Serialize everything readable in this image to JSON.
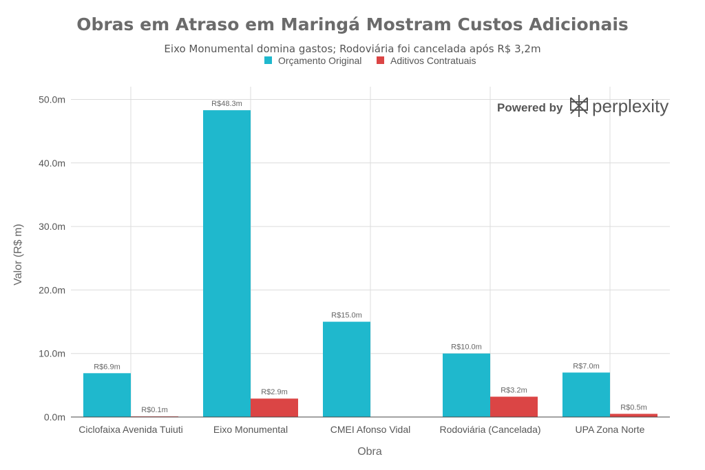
{
  "colors": {
    "series_0": "#1fb8cd",
    "series_1": "#db4545",
    "grid": "#dcdcdc",
    "axis": "#444444"
  },
  "watermark": {
    "prefix": "Powered by",
    "name": "perplexity",
    "icon": "perplexity-logo-icon"
  },
  "chart_data": {
    "type": "bar",
    "title": "Obras em Atraso em Maringá Mostram Custos Adicionais",
    "subtitle": "Eixo Monumental domina gastos; Rodoviária foi cancelada após R$ 3,2m",
    "xlabel": "Obra",
    "ylabel": "Valor (R$ m)",
    "ylim": [
      0,
      52
    ],
    "yticks": [
      0,
      10,
      20,
      30,
      40,
      50
    ],
    "ytick_labels": [
      "0.0m",
      "10.0m",
      "20.0m",
      "30.0m",
      "40.0m",
      "50.0m"
    ],
    "grid": true,
    "legend_position": "top-center",
    "categories": [
      "Ciclofaixa Avenida Tuiuti",
      "Eixo Monumental",
      "CMEI Afonso Vidal",
      "Rodoviária (Cancelada)",
      "UPA Zona Norte"
    ],
    "series": [
      {
        "name": "Orçamento Original",
        "values": [
          6.9,
          48.3,
          15.0,
          10.0,
          7.0
        ],
        "labels": [
          "R$6.9m",
          "R$48.3m",
          "R$15.0m",
          "R$10.0m",
          "R$7.0m"
        ]
      },
      {
        "name": "Aditivos Contratuais",
        "values": [
          0.1,
          2.9,
          null,
          3.2,
          0.5
        ],
        "labels": [
          "R$0.1m",
          "R$2.9m",
          null,
          "R$3.2m",
          "R$0.5m"
        ]
      }
    ]
  }
}
